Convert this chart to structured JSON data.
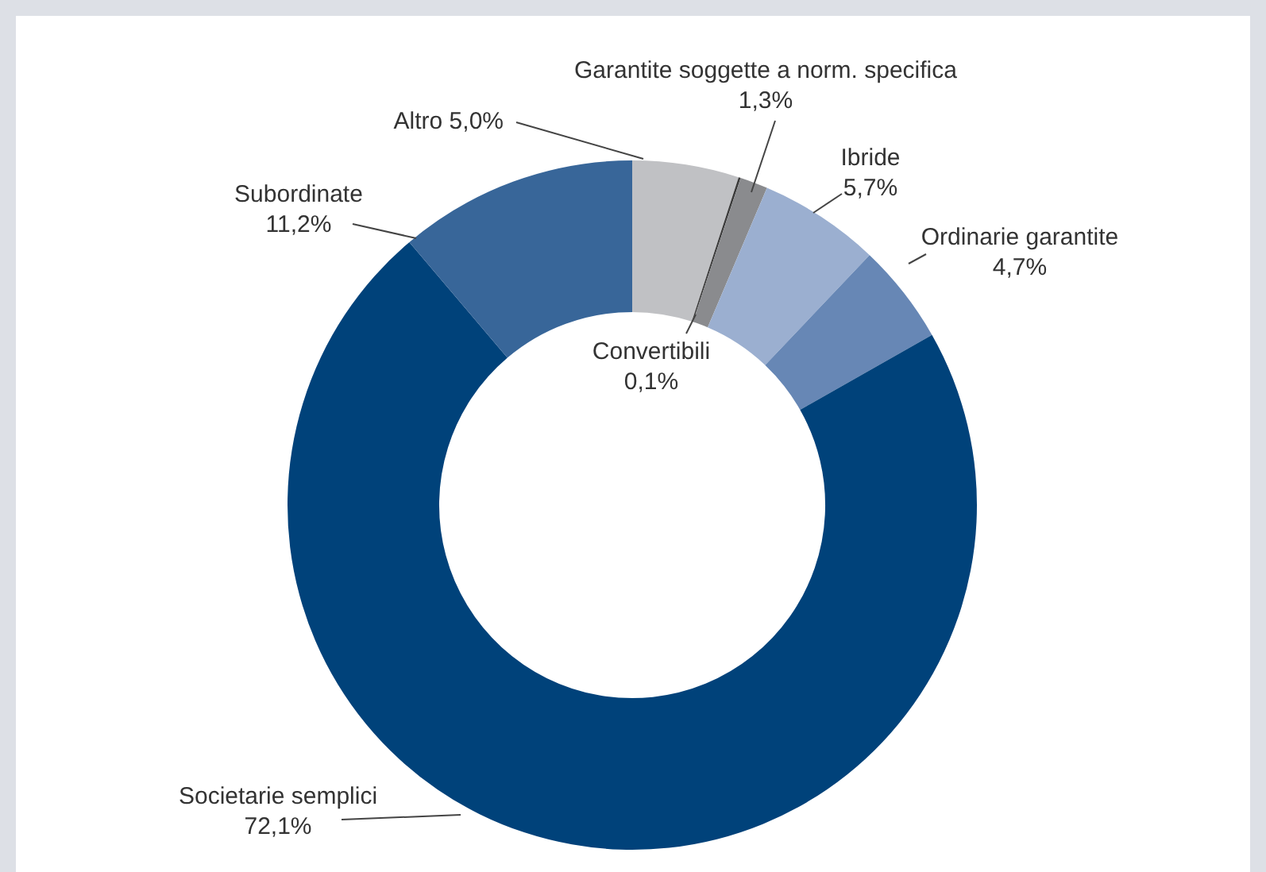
{
  "chart_data": {
    "type": "donut",
    "categories": [
      "Altro",
      "Convertibili",
      "Garantite soggette a norm. specifica",
      "Ibride",
      "Ordinarie garantite",
      "Societarie semplici",
      "Subordinate"
    ],
    "values": [
      5.0,
      0.1,
      1.3,
      5.7,
      4.7,
      72.1,
      11.2
    ],
    "value_labels": [
      "5,0%",
      "0,1%",
      "1,3%",
      "5,7%",
      "4,7%",
      "72,1%",
      "11,2%"
    ],
    "colors": [
      "#c0c1c4",
      "#3a3a3a",
      "#8a8b8e",
      "#9bafd0",
      "#6787b5",
      "#00427a",
      "#386699"
    ],
    "legend": false
  }
}
